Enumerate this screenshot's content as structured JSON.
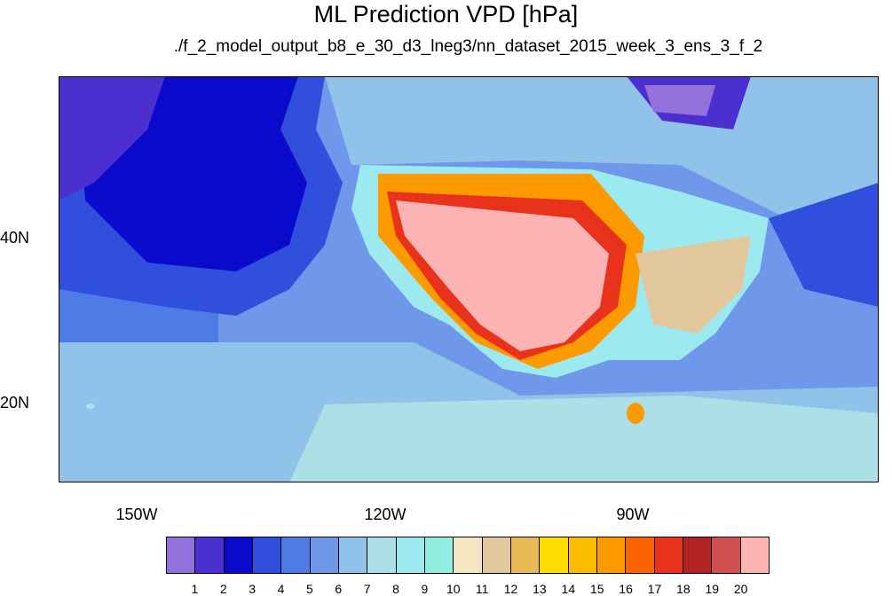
{
  "title": "ML Prediction VPD [hPa]",
  "subtitle": "./f_2_model_output_b8_e_30_d3_lneg3/nn_dataset_2015_week_3_ens_3_f_2",
  "lon_labels": [
    "150W",
    "120W",
    "90W"
  ],
  "lat_labels": [
    "40N",
    "20N"
  ],
  "colorbar": {
    "colors": [
      "#9370db",
      "#4b2fcf",
      "#0a0acd",
      "#2f4fdc",
      "#4f7be6",
      "#6f97ea",
      "#90c2ea",
      "#abe0e6",
      "#9de9f0",
      "#92eee0",
      "#f5e6c2",
      "#e2c79c",
      "#e9ba55",
      "#fddc00",
      "#fdbb00",
      "#fd9a00",
      "#fd6400",
      "#e8321c",
      "#b22222",
      "#d05050",
      "#fbb3b3"
    ],
    "labels": [
      "1",
      "2",
      "3",
      "4",
      "5",
      "6",
      "7",
      "8",
      "9",
      "10",
      "11",
      "12",
      "13",
      "14",
      "15",
      "16",
      "17",
      "18",
      "19",
      "20"
    ]
  },
  "map_bounds": {
    "lon_min": -164.7,
    "lon_max": -65.6,
    "lat_min": 10.5,
    "lat_max": 59.5
  }
}
